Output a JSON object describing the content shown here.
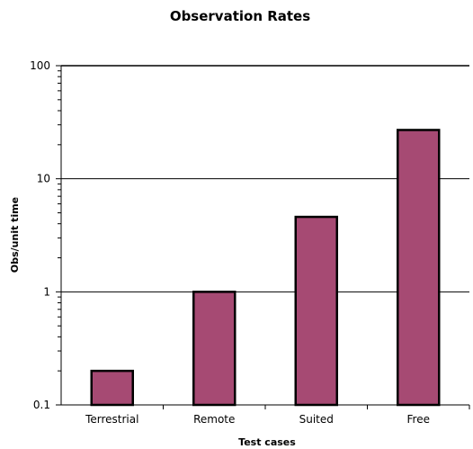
{
  "chart_data": {
    "type": "bar",
    "title": "Observation Rates",
    "xlabel": "Test cases",
    "ylabel": "Obs/unit time",
    "categories": [
      "Terrestrial",
      "Remote",
      "Suited",
      "Free"
    ],
    "values": [
      0.2,
      1.0,
      4.6,
      27
    ],
    "yscale": "log",
    "ylim": [
      0.1,
      100
    ],
    "yticks": [
      0.1,
      1,
      10,
      100
    ],
    "ytick_labels": [
      "0.1",
      "1",
      "10",
      "100"
    ],
    "grid": true,
    "legend": "none",
    "colors": {
      "bar_fill": "#A64A73",
      "bar_stroke": "#000000",
      "grid": "#000000",
      "axis": "#000000"
    }
  }
}
